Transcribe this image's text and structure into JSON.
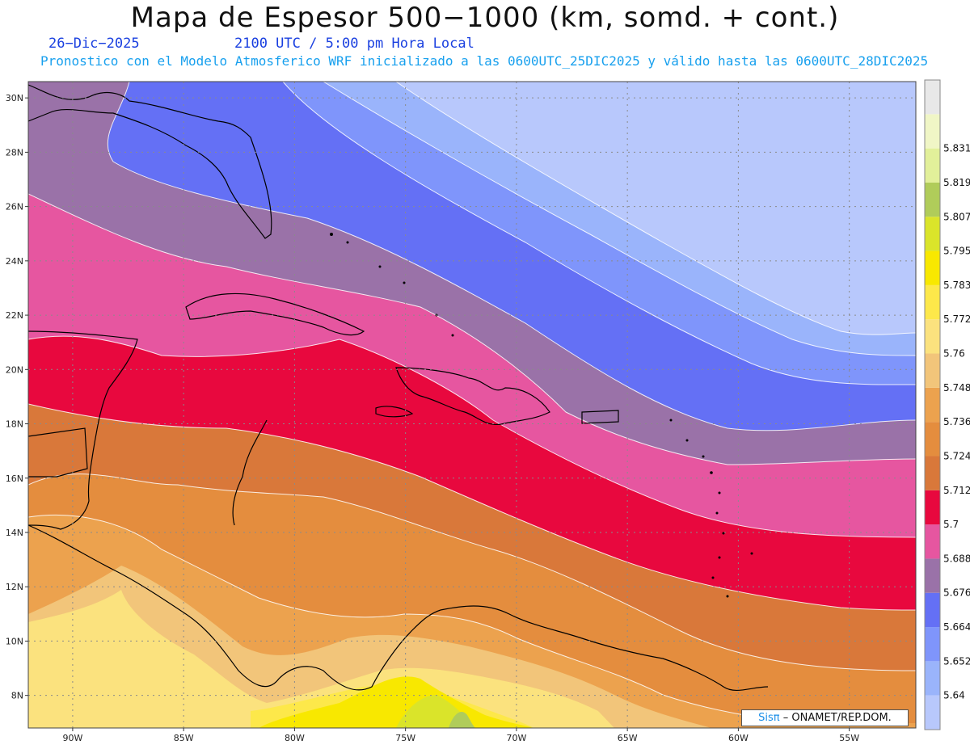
{
  "title": "Mapa de Espesor 500−1000 (km, somd. + cont.)",
  "date": "26−Dic−2025",
  "time": "2100 UTC / 5:00 pm Hora Local",
  "subtitle": "Pronostico con el Modelo Atmosferico WRF inicializado a las 0600UTC_25DIC2025 y válido hasta las  0600UTC_28DIC2025",
  "credit": {
    "brand": "Sisπ",
    "rest": "– ONAMET/REP.DOM."
  },
  "map": {
    "lon_range": [
      -92,
      -52
    ],
    "lat_range": [
      6.8,
      30.6
    ],
    "lat_ticks": [
      "8N",
      "10N",
      "12N",
      "14N",
      "16N",
      "18N",
      "20N",
      "22N",
      "24N",
      "26N",
      "28N",
      "30N"
    ],
    "lon_ticks": [
      "90W",
      "85W",
      "80W",
      "75W",
      "70W",
      "65W",
      "60W",
      "55W"
    ],
    "grid": true
  },
  "colorbar": {
    "levels": [
      "5.64",
      "5.652",
      "5.664",
      "5.676",
      "5.688",
      "5.7",
      "5.712",
      "5.724",
      "5.736",
      "5.748",
      "5.76",
      "5.772",
      "5.783",
      "5.795",
      "5.807",
      "5.819",
      "5.831"
    ],
    "colors": [
      "#b8c8fc",
      "#9ab4fb",
      "#7f95fb",
      "#6470f5",
      "#9a72a8",
      "#e656a0",
      "#e8083e",
      "#d9783a",
      "#e48d3e",
      "#eca24e",
      "#f2c57a",
      "#fbe27e",
      "#fde84a",
      "#f8e800",
      "#dae42a",
      "#b0cc5a",
      "#e2f09a",
      "#f0f6c6",
      "#e8e8e8"
    ]
  }
}
